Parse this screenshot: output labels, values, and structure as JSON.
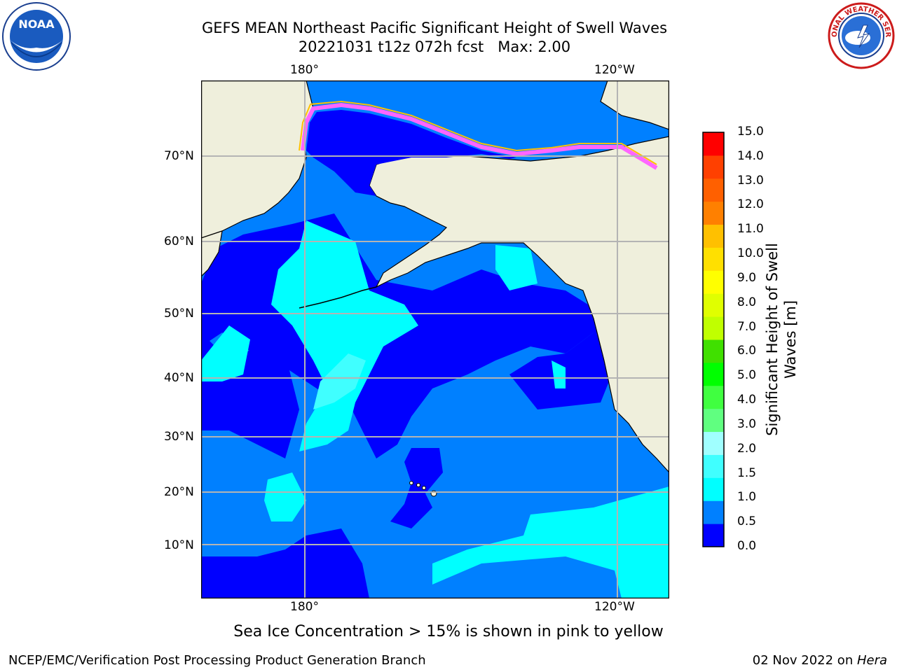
{
  "title": {
    "line1": "GEFS MEAN Northeast Pacific Significant Height of Swell Waves",
    "line2": "20221031 t12z 072h fcst   Max: 2.00"
  },
  "axes": {
    "lon_labels_top": [
      "180°",
      "120°W"
    ],
    "lon_labels_bottom": [
      "180°",
      "120°W"
    ],
    "lat_labels": [
      "70°N",
      "60°N",
      "50°N",
      "40°N",
      "30°N",
      "20°N",
      "10°N"
    ]
  },
  "colorbar": {
    "label": "Significant Height of Swell Waves [m]",
    "label_line1": "Significant Height of Swell",
    "label_line2": "Waves [m]",
    "ticks": [
      "15.0",
      "14.0",
      "13.0",
      "12.0",
      "11.0",
      "10.0",
      "9.0",
      "8.0",
      "7.0",
      "6.0",
      "5.0",
      "4.0",
      "3.0",
      "2.0",
      "1.5",
      "1.0",
      "0.5",
      "0.0"
    ],
    "colors_bottom_to_top": [
      "#0000ff",
      "#0080ff",
      "#00ffff",
      "#40ffff",
      "#a0ffff",
      "#60ff80",
      "#40ff40",
      "#00ff00",
      "#40e000",
      "#c0ff00",
      "#e0ff00",
      "#ffff00",
      "#ffe000",
      "#ffc000",
      "#ff8000",
      "#ff6000",
      "#ff4000",
      "#ff0000"
    ]
  },
  "map": {
    "colors": {
      "land": "#efefdc",
      "wave_0_05": "#0000ff",
      "wave_05_1": "#0080ff",
      "wave_1_15": "#00ffff",
      "wave_15_2": "#40ffff",
      "ice_pink": "#ff66ff",
      "ice_yellow": "#ffc000"
    }
  },
  "note": "Sea Ice Concentration > 15% is shown in pink to yellow",
  "footer": {
    "left": "NCEP/EMC/Verification Post Processing Product Generation Branch",
    "right_date": "02 Nov 2022 on ",
    "right_host": "Hera"
  },
  "logos": {
    "noaa": "NOAA",
    "nws_ring": "NATIONAL WEATHER SERVICE"
  }
}
